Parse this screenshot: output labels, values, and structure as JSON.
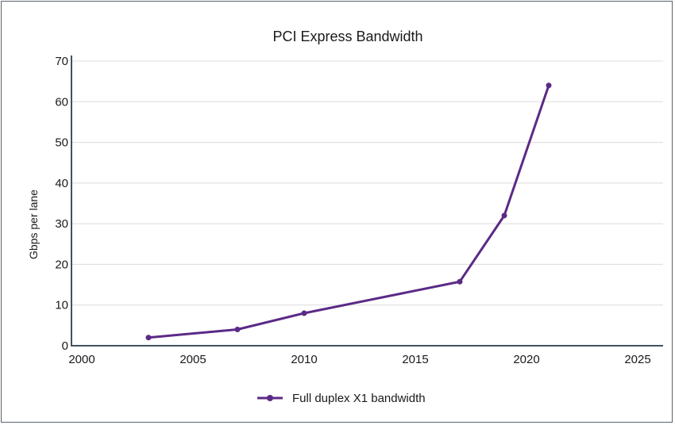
{
  "chart_data": {
    "type": "line",
    "title": "PCI Express Bandwidth",
    "xlabel": "",
    "ylabel": "Gbps per lane",
    "xlim": [
      2000,
      2025
    ],
    "ylim": [
      0,
      70
    ],
    "x_ticks": [
      2000,
      2005,
      2010,
      2015,
      2020,
      2025
    ],
    "y_ticks": [
      0,
      10,
      20,
      30,
      40,
      50,
      60,
      70
    ],
    "grid": true,
    "legend_position": "bottom-center",
    "series": [
      {
        "name": "Full duplex X1 bandwidth",
        "color": "#5b2a86",
        "x": [
          2003,
          2007,
          2010,
          2017,
          2019,
          2021
        ],
        "values": [
          2,
          4,
          8,
          15.75,
          32,
          64
        ]
      }
    ]
  }
}
